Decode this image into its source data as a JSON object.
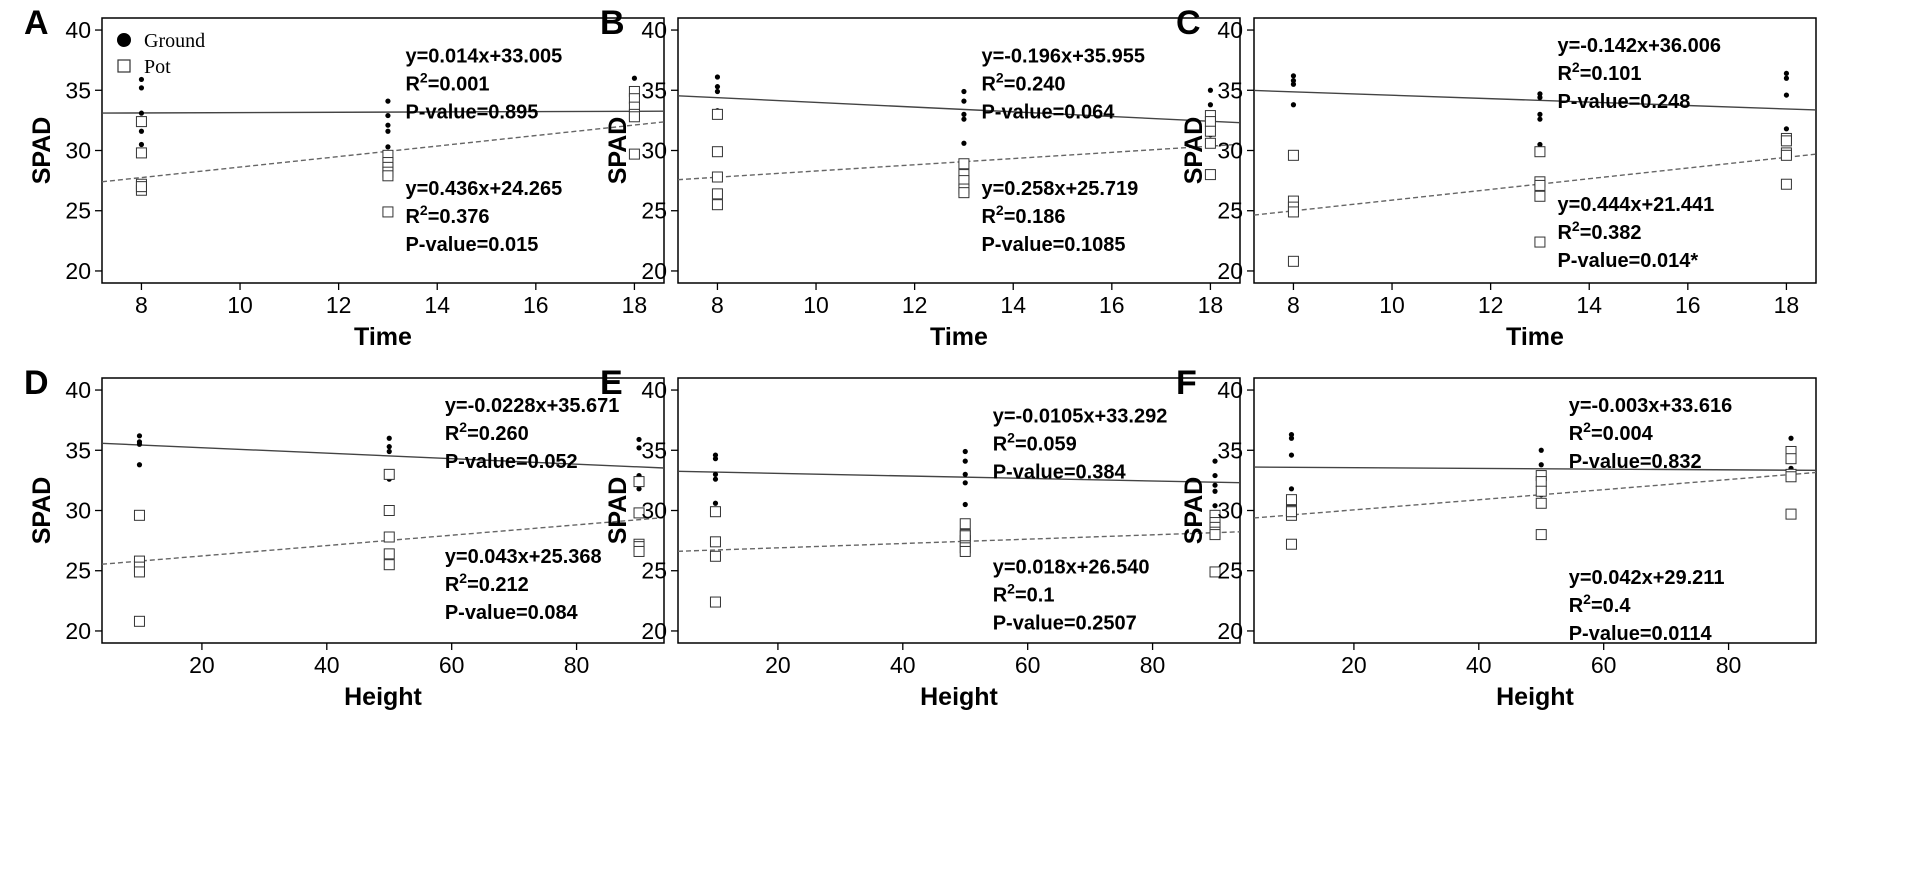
{
  "legend": {
    "ground_label": "Ground",
    "pot_label": "Pot"
  },
  "chart_data": [
    {
      "panel": "A",
      "type": "scatter",
      "xlabel": "Time",
      "ylabel": "SPAD",
      "xlim": [
        7.2,
        18.6
      ],
      "ylim": [
        19.0,
        41.0
      ],
      "xticks": [
        8,
        10,
        12,
        14,
        16,
        18
      ],
      "yticks": [
        20,
        25,
        30,
        35,
        40
      ],
      "series": [
        {
          "name": "Ground",
          "marker": "dot",
          "x": [
            8,
            8,
            8,
            8,
            8,
            8,
            13,
            13,
            13,
            13,
            13,
            13,
            13,
            13,
            18,
            18,
            18,
            18,
            18,
            18,
            18
          ],
          "y": [
            35.9,
            35.2,
            33.1,
            32.4,
            31.6,
            30.5,
            34.1,
            32.9,
            32.1,
            31.6,
            30.3,
            29.4,
            28.6,
            27.9,
            36.0,
            34.9,
            33.9,
            33.5,
            33.2,
            32.9,
            32.6
          ],
          "fit": {
            "slope": 0.014,
            "intercept": 33.005,
            "equation": "y=0.014x+33.005",
            "r2": "0.001",
            "p": "P-value=0.895",
            "line": "solid"
          }
        },
        {
          "name": "Pot",
          "marker": "square",
          "x": [
            8,
            8,
            8,
            8,
            8,
            13,
            13,
            13,
            13,
            13,
            13,
            18,
            18,
            18,
            18,
            18,
            18
          ],
          "y": [
            32.4,
            29.8,
            27.2,
            26.7,
            27.0,
            29.6,
            29.0,
            28.6,
            28.2,
            27.9,
            24.9,
            34.9,
            34.3,
            33.6,
            33.0,
            32.8,
            29.7
          ],
          "fit": {
            "slope": 0.436,
            "intercept": 24.265,
            "equation": "y=0.436x+24.265",
            "r2": "0.376",
            "p": "P-value=0.015",
            "line": "dashed"
          }
        }
      ]
    },
    {
      "panel": "B",
      "type": "scatter",
      "xlabel": "Time",
      "ylabel": "SPAD",
      "xlim": [
        7.2,
        18.6
      ],
      "ylim": [
        19.0,
        41.0
      ],
      "xticks": [
        8,
        10,
        12,
        14,
        16,
        18
      ],
      "yticks": [
        20,
        25,
        30,
        35,
        40
      ],
      "series": [
        {
          "name": "Ground",
          "marker": "dot",
          "x": [
            8,
            8,
            8,
            8,
            13,
            13,
            13,
            13,
            13,
            18,
            18,
            18,
            18,
            18,
            18
          ],
          "y": [
            36.1,
            35.3,
            34.9,
            33.3,
            34.9,
            34.1,
            33.0,
            32.6,
            30.6,
            35.0,
            33.8,
            32.9,
            32.4,
            31.8,
            31.3
          ],
          "fit": {
            "slope": -0.196,
            "intercept": 35.955,
            "equation": "y=-0.196x+35.955",
            "r2": "0.240",
            "p": "P-value=0.064",
            "line": "solid"
          }
        },
        {
          "name": "Pot",
          "marker": "square",
          "x": [
            8,
            8,
            8,
            8,
            8,
            13,
            13,
            13,
            13,
            13,
            18,
            18,
            18,
            18,
            18
          ],
          "y": [
            33.0,
            29.9,
            27.8,
            26.4,
            25.5,
            28.9,
            28.0,
            27.5,
            26.8,
            26.5,
            32.9,
            32.4,
            31.6,
            30.6,
            28.0
          ],
          "fit": {
            "slope": 0.258,
            "intercept": 25.719,
            "equation": "y=0.258x+25.719",
            "r2": "0.186",
            "p": "P-value=0.1085",
            "line": "dashed"
          }
        }
      ]
    },
    {
      "panel": "C",
      "type": "scatter",
      "xlabel": "Time",
      "ylabel": "SPAD",
      "xlim": [
        7.2,
        18.6
      ],
      "ylim": [
        19.0,
        41.0
      ],
      "xticks": [
        8,
        10,
        12,
        14,
        16,
        18
      ],
      "yticks": [
        20,
        25,
        30,
        35,
        40
      ],
      "series": [
        {
          "name": "Ground",
          "marker": "dot",
          "x": [
            8,
            8,
            8,
            8,
            13,
            13,
            13,
            13,
            13,
            18,
            18,
            18,
            18,
            18
          ],
          "y": [
            36.2,
            35.8,
            35.5,
            33.8,
            34.7,
            34.4,
            33.0,
            32.6,
            30.5,
            36.4,
            36.0,
            34.6,
            31.8,
            31.0
          ],
          "fit": {
            "slope": -0.142,
            "intercept": 36.006,
            "equation": "y=-0.142x+36.006",
            "r2": "0.101",
            "p": "P-value=0.248",
            "line": "solid"
          }
        },
        {
          "name": "Pot",
          "marker": "square",
          "x": [
            8,
            8,
            8,
            8,
            8,
            13,
            13,
            13,
            13,
            13,
            18,
            18,
            18,
            18,
            18
          ],
          "y": [
            29.6,
            25.8,
            25.3,
            24.9,
            20.8,
            29.9,
            27.4,
            27.1,
            26.2,
            22.4,
            31.0,
            30.8,
            29.8,
            29.6,
            27.2
          ],
          "fit": {
            "slope": 0.444,
            "intercept": 21.441,
            "equation": "y=0.444x+21.441",
            "r2": "0.382",
            "p": "P-value=0.014*",
            "line": "dashed"
          }
        }
      ]
    },
    {
      "panel": "D",
      "type": "scatter",
      "xlabel": "Height",
      "ylabel": "SPAD",
      "xlim": [
        4,
        94
      ],
      "ylim": [
        19.0,
        41.0
      ],
      "xticks": [
        20,
        40,
        60,
        80
      ],
      "yticks": [
        20,
        25,
        30,
        35,
        40
      ],
      "series": [
        {
          "name": "Ground",
          "marker": "dot",
          "x": [
            10,
            10,
            10,
            10,
            50,
            50,
            50,
            50,
            50,
            90,
            90,
            90,
            90,
            90
          ],
          "y": [
            36.2,
            35.7,
            35.5,
            33.8,
            36.0,
            35.3,
            34.9,
            33.1,
            32.6,
            35.9,
            35.2,
            32.9,
            32.4,
            31.8
          ],
          "fit": {
            "slope": -0.0228,
            "intercept": 35.671,
            "equation": "y=-0.0228x+35.671",
            "r2": "0.260",
            "p": "P-value=0.052",
            "line": "solid"
          }
        },
        {
          "name": "Pot",
          "marker": "square",
          "x": [
            10,
            10,
            10,
            10,
            10,
            50,
            50,
            50,
            50,
            50,
            90,
            90,
            90,
            90,
            90
          ],
          "y": [
            29.6,
            25.8,
            25.3,
            24.9,
            20.8,
            33.0,
            30.0,
            27.8,
            26.4,
            25.5,
            32.4,
            29.8,
            27.2,
            27.0,
            26.6
          ],
          "fit": {
            "slope": 0.043,
            "intercept": 25.368,
            "equation": "y=0.043x+25.368",
            "r2": "0.212",
            "p": "P-value=0.084",
            "line": "dashed"
          }
        }
      ]
    },
    {
      "panel": "E",
      "type": "scatter",
      "xlabel": "Height",
      "ylabel": "SPAD",
      "xlim": [
        4,
        94
      ],
      "ylim": [
        19.0,
        41.0
      ],
      "xticks": [
        20,
        40,
        60,
        80
      ],
      "yticks": [
        20,
        25,
        30,
        35,
        40
      ],
      "series": [
        {
          "name": "Ground",
          "marker": "dot",
          "x": [
            10,
            10,
            10,
            10,
            10,
            50,
            50,
            50,
            50,
            50,
            90,
            90,
            90,
            90,
            90
          ],
          "y": [
            34.6,
            34.3,
            33.0,
            32.6,
            30.6,
            34.9,
            34.1,
            33.0,
            32.3,
            30.5,
            34.1,
            32.9,
            32.1,
            31.6,
            30.4
          ],
          "fit": {
            "slope": -0.0105,
            "intercept": 33.292,
            "equation": "y=-0.0105x+33.292",
            "r2": "0.059",
            "p": "P-value=0.384",
            "line": "solid"
          }
        },
        {
          "name": "Pot",
          "marker": "square",
          "x": [
            10,
            10,
            10,
            10,
            50,
            50,
            50,
            50,
            50,
            50,
            90,
            90,
            90,
            90,
            90,
            90
          ],
          "y": [
            29.9,
            27.4,
            26.2,
            22.4,
            28.9,
            28.0,
            27.5,
            26.9,
            26.6,
            27.9,
            29.6,
            29.0,
            28.6,
            28.2,
            28.0,
            24.9
          ],
          "fit": {
            "slope": 0.018,
            "intercept": 26.54,
            "equation": "y=0.018x+26.540",
            "r2": "0.1",
            "p": "P-value=0.2507",
            "line": "dashed"
          }
        }
      ]
    },
    {
      "panel": "F",
      "type": "scatter",
      "xlabel": "Height",
      "ylabel": "SPAD",
      "xlim": [
        4,
        94
      ],
      "ylim": [
        19.0,
        41.0
      ],
      "xticks": [
        20,
        40,
        60,
        80
      ],
      "yticks": [
        20,
        25,
        30,
        35,
        40
      ],
      "series": [
        {
          "name": "Ground",
          "marker": "dot",
          "x": [
            10,
            10,
            10,
            10,
            10,
            50,
            50,
            50,
            50,
            50,
            90,
            90,
            90,
            90,
            90
          ],
          "y": [
            36.3,
            36.0,
            34.6,
            31.8,
            31.0,
            35.0,
            33.8,
            32.4,
            31.9,
            31.3,
            36.0,
            33.5,
            33.2,
            32.9,
            32.6
          ],
          "fit": {
            "slope": -0.003,
            "intercept": 33.616,
            "equation": "y=-0.003x+33.616",
            "r2": "0.004",
            "p": "P-value=0.832",
            "line": "solid"
          }
        },
        {
          "name": "Pot",
          "marker": "square",
          "x": [
            10,
            10,
            10,
            10,
            10,
            50,
            50,
            50,
            50,
            50,
            90,
            90,
            90,
            90,
            90
          ],
          "y": [
            30.9,
            30.0,
            29.6,
            29.9,
            27.2,
            32.9,
            32.4,
            31.6,
            30.6,
            28.0,
            34.9,
            34.3,
            33.0,
            32.8,
            29.7
          ],
          "fit": {
            "slope": 0.042,
            "intercept": 29.211,
            "equation": "y=0.042x+29.211",
            "r2": "0.4",
            "p": "P-value=0.0114",
            "line": "dashed"
          }
        }
      ]
    }
  ]
}
